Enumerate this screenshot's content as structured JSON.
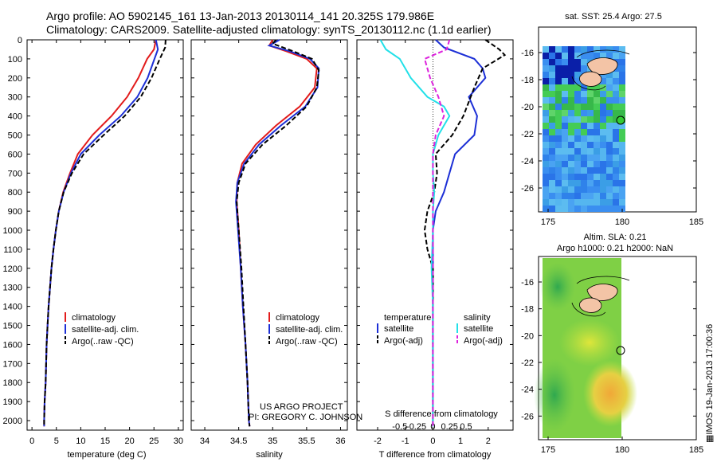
{
  "header": {
    "line1": "Argo profile: AO 5902145_161 13-Jan-2013 20130114_141 20.325S 179.986E",
    "line2": "Climatology: CARS2009. Satellite-adjusted climatology: synTS_20130112.nc (1.1d earlier)"
  },
  "map_top": {
    "title": "sat. SST: 25.4 Argo: 27.5",
    "yticks": [
      "-16",
      "-18",
      "-20",
      "-22",
      "-24",
      "-26"
    ],
    "xticks": [
      "175",
      "180",
      "185"
    ]
  },
  "map_bottom": {
    "title1": "Altim. SLA: 0.21",
    "title2": "Argo h1000: 0.21 h2000: NaN",
    "yticks": [
      "-16",
      "-18",
      "-20",
      "-22",
      "-24",
      "-26"
    ],
    "xticks": [
      "175",
      "180",
      "185"
    ]
  },
  "stamp": "IMOS 19-Jan-2013 17:00:36",
  "colors": {
    "climatology": "#e21b1b",
    "satellite": "#1c2fd6",
    "argo": "#000000",
    "sat_diff_t": "#1c2fd6",
    "sat_diff_s": "#22e0e8",
    "argo_diff_s": "#dd22dd"
  },
  "credits": {
    "line1": "US ARGO PROJECT",
    "line2": "PI: GREGORY C. JOHNSON"
  },
  "chart_data": [
    {
      "type": "line",
      "name": "temperature",
      "xlabel": "temperature (deg C)",
      "ylabel": "",
      "xlim": [
        -1,
        31
      ],
      "ylim": [
        2050,
        0
      ],
      "xticks": [
        0,
        5,
        10,
        15,
        20,
        25,
        30
      ],
      "yticks": [
        0,
        100,
        200,
        300,
        400,
        500,
        600,
        700,
        800,
        900,
        1000,
        1100,
        1200,
        1300,
        1400,
        1500,
        1600,
        1700,
        1800,
        1900,
        2000
      ],
      "legend": [
        "climatology",
        "satellite-adj. clim.",
        "Argo(..raw -QC)"
      ],
      "series": [
        {
          "name": "climatology",
          "points": [
            [
              25.4,
              0
            ],
            [
              25,
              50
            ],
            [
              23.6,
              100
            ],
            [
              21.8,
              200
            ],
            [
              19.5,
              300
            ],
            [
              16.3,
              400
            ],
            [
              12.4,
              500
            ],
            [
              9.4,
              600
            ],
            [
              7.8,
              700
            ],
            [
              6.4,
              800
            ],
            [
              5.5,
              900
            ],
            [
              4.9,
              1000
            ],
            [
              4.4,
              1100
            ],
            [
              4,
              1200
            ],
            [
              3.7,
              1300
            ],
            [
              3.4,
              1400
            ],
            [
              3.2,
              1500
            ],
            [
              3,
              1600
            ],
            [
              2.9,
              1700
            ],
            [
              2.8,
              1800
            ],
            [
              2.6,
              1900
            ],
            [
              2.5,
              2000
            ],
            [
              2.5,
              2030
            ]
          ]
        },
        {
          "name": "satellite-adj. clim.",
          "points": [
            [
              25.4,
              0
            ],
            [
              25.8,
              50
            ],
            [
              25.1,
              100
            ],
            [
              23.7,
              200
            ],
            [
              21.6,
              300
            ],
            [
              18.2,
              400
            ],
            [
              13.8,
              500
            ],
            [
              10,
              600
            ],
            [
              8,
              700
            ],
            [
              6.5,
              800
            ],
            [
              5.5,
              900
            ],
            [
              4.9,
              1000
            ],
            [
              4.4,
              1100
            ],
            [
              4,
              1200
            ],
            [
              3.7,
              1300
            ],
            [
              3.4,
              1400
            ],
            [
              3.2,
              1500
            ],
            [
              3,
              1600
            ],
            [
              2.9,
              1700
            ],
            [
              2.8,
              1800
            ],
            [
              2.6,
              1900
            ],
            [
              2.5,
              2000
            ],
            [
              2.5,
              2030
            ]
          ]
        },
        {
          "name": "Argo(..raw -QC)",
          "points": [
            [
              27.4,
              0
            ],
            [
              27.3,
              40
            ],
            [
              26.2,
              100
            ],
            [
              24.5,
              200
            ],
            [
              22.3,
              300
            ],
            [
              19,
              400
            ],
            [
              14.7,
              500
            ],
            [
              10.6,
              600
            ],
            [
              8.2,
              700
            ],
            [
              6.5,
              800
            ],
            [
              5.5,
              900
            ],
            [
              4.9,
              1000
            ],
            [
              4.4,
              1100
            ],
            [
              4,
              1200
            ],
            [
              3.7,
              1300
            ],
            [
              3.4,
              1400
            ],
            [
              3.2,
              1500
            ],
            [
              3,
              1600
            ],
            [
              2.9,
              1700
            ],
            [
              2.8,
              1800
            ],
            [
              2.6,
              1900
            ],
            [
              2.5,
              2000
            ],
            [
              2.5,
              2030
            ]
          ]
        }
      ]
    },
    {
      "type": "line",
      "name": "salinity",
      "xlabel": "salinity",
      "ylabel": "",
      "xlim": [
        33.8,
        36.1
      ],
      "ylim": [
        2050,
        0
      ],
      "xticks": [
        34,
        34.5,
        35,
        35.5,
        36
      ],
      "xticklabels": [
        "34",
        "34.5",
        "35",
        "35.5",
        "36"
      ],
      "legend": [
        "climatology",
        "satellite-adj. clim.",
        "Argo(..raw -QC)"
      ],
      "series": [
        {
          "name": "climatology",
          "points": [
            [
              35,
              0
            ],
            [
              34.95,
              30
            ],
            [
              35.2,
              60
            ],
            [
              35.5,
              100
            ],
            [
              35.65,
              150
            ],
            [
              35.62,
              250
            ],
            [
              35.4,
              350
            ],
            [
              35.05,
              450
            ],
            [
              34.75,
              550
            ],
            [
              34.55,
              650
            ],
            [
              34.48,
              750
            ],
            [
              34.47,
              850
            ],
            [
              34.5,
              1000
            ],
            [
              34.53,
              1200
            ],
            [
              34.56,
              1400
            ],
            [
              34.6,
              1600
            ],
            [
              34.63,
              1800
            ],
            [
              34.65,
              2000
            ],
            [
              34.66,
              2030
            ]
          ]
        },
        {
          "name": "satellite-adj. clim.",
          "points": [
            [
              35.1,
              0
            ],
            [
              34.95,
              30
            ],
            [
              35.25,
              60
            ],
            [
              35.55,
              100
            ],
            [
              35.68,
              150
            ],
            [
              35.66,
              250
            ],
            [
              35.48,
              350
            ],
            [
              35.12,
              450
            ],
            [
              34.8,
              550
            ],
            [
              34.58,
              650
            ],
            [
              34.48,
              750
            ],
            [
              34.46,
              850
            ],
            [
              34.49,
              1000
            ],
            [
              34.53,
              1200
            ],
            [
              34.56,
              1400
            ],
            [
              34.6,
              1600
            ],
            [
              34.63,
              1800
            ],
            [
              34.65,
              2000
            ],
            [
              34.66,
              2030
            ]
          ]
        },
        {
          "name": "Argo(..raw -QC)",
          "points": [
            [
              35.05,
              0
            ],
            [
              35,
              20
            ],
            [
              35.3,
              60
            ],
            [
              35.58,
              100
            ],
            [
              35.68,
              160
            ],
            [
              35.65,
              250
            ],
            [
              35.5,
              350
            ],
            [
              35.2,
              450
            ],
            [
              34.85,
              550
            ],
            [
              34.6,
              650
            ],
            [
              34.5,
              750
            ],
            [
              34.47,
              850
            ],
            [
              34.5,
              1000
            ],
            [
              34.54,
              1200
            ],
            [
              34.57,
              1400
            ],
            [
              34.6,
              1600
            ],
            [
              34.63,
              1800
            ],
            [
              34.65,
              2000
            ],
            [
              34.66,
              2030
            ]
          ]
        }
      ]
    },
    {
      "type": "line",
      "name": "difference",
      "xlabel": "T difference from climatology",
      "xlabel_top": "S difference from climatology",
      "xlim": [
        -2.75,
        2.9
      ],
      "ylim": [
        2050,
        0
      ],
      "xticks": [
        -2,
        -1,
        0,
        1,
        2
      ],
      "xticks_s": [
        -0.5,
        -0.25,
        0,
        0.25,
        0.5
      ],
      "xticklabels_s": [
        "-0.5",
        "-0.25",
        "0",
        "0.25",
        "0.5"
      ],
      "legend_headers": [
        "temperature",
        "salinity"
      ],
      "legend": [
        "satellite",
        "Argo(-adj)",
        "satellite",
        "Argo(-adj)"
      ],
      "series": [
        {
          "name": "T satellite",
          "points": [
            [
              0.1,
              0
            ],
            [
              0.4,
              40
            ],
            [
              1.5,
              100
            ],
            [
              1.8,
              150
            ],
            [
              1.9,
              200
            ],
            [
              1.3,
              300
            ],
            [
              1.6,
              400
            ],
            [
              1.5,
              500
            ],
            [
              0.8,
              600
            ],
            [
              0.6,
              700
            ],
            [
              0.4,
              800
            ],
            [
              0.1,
              900
            ],
            [
              0,
              1000
            ],
            [
              0,
              1200
            ],
            [
              0,
              1400
            ],
            [
              0,
              1600
            ],
            [
              0,
              1800
            ],
            [
              0,
              2000
            ],
            [
              0,
              2030
            ]
          ]
        },
        {
          "name": "T Argo(-adj)",
          "points": [
            [
              1.9,
              0
            ],
            [
              2.4,
              50
            ],
            [
              2.6,
              80
            ],
            [
              1.8,
              150
            ],
            [
              1.5,
              250
            ],
            [
              1.1,
              400
            ],
            [
              0.7,
              500
            ],
            [
              0.1,
              600
            ],
            [
              0.15,
              700
            ],
            [
              0.05,
              800
            ],
            [
              -0.2,
              900
            ],
            [
              -0.3,
              1000
            ],
            [
              -0.2,
              1100
            ],
            [
              0,
              1200
            ],
            [
              0,
              1400
            ],
            [
              0,
              1600
            ],
            [
              0,
              1800
            ],
            [
              0,
              2000
            ],
            [
              0,
              2030
            ]
          ]
        },
        {
          "name": "S satellite",
          "points": [
            [
              -1.9,
              0
            ],
            [
              -1.7,
              50
            ],
            [
              -1.2,
              100
            ],
            [
              -0.8,
              200
            ],
            [
              -0.2,
              300
            ],
            [
              0.4,
              350
            ],
            [
              0.6,
              400
            ],
            [
              0.2,
              500
            ],
            [
              0,
              600
            ],
            [
              0,
              700
            ],
            [
              0.05,
              800
            ],
            [
              0,
              900
            ],
            [
              0,
              1000
            ],
            [
              -0.05,
              1200
            ],
            [
              0,
              1400
            ],
            [
              0,
              1600
            ],
            [
              0,
              1800
            ],
            [
              0,
              2000
            ],
            [
              0,
              2030
            ]
          ]
        },
        {
          "name": "S Argo(-adj)",
          "points": [
            [
              0.6,
              0
            ],
            [
              0.5,
              50
            ],
            [
              -0.3,
              100
            ],
            [
              -0.1,
              200
            ],
            [
              0.2,
              300
            ],
            [
              0.4,
              400
            ],
            [
              0.1,
              500
            ],
            [
              0,
              600
            ],
            [
              0,
              700
            ],
            [
              0,
              800
            ],
            [
              0,
              1000
            ],
            [
              0,
              1200
            ],
            [
              0,
              1400
            ],
            [
              0,
              1600
            ],
            [
              0,
              1800
            ],
            [
              0,
              2000
            ],
            [
              0,
              2030
            ]
          ]
        }
      ]
    }
  ]
}
